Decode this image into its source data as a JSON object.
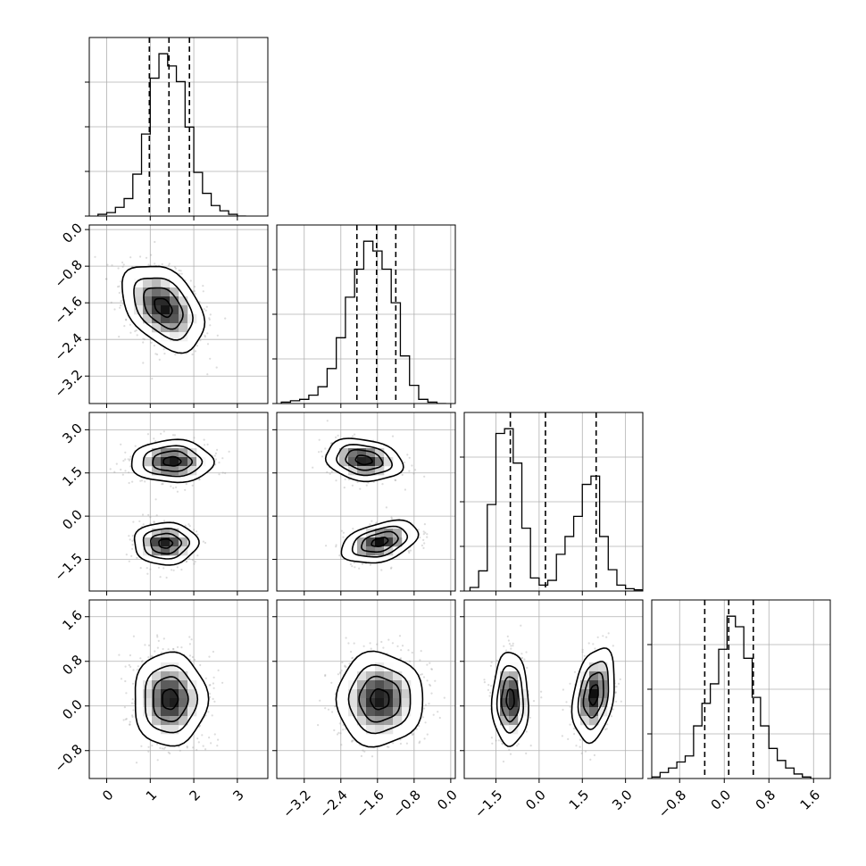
{
  "chart_data": {
    "type": "corner",
    "title": "",
    "dimensions": 4,
    "grid": true,
    "quantile_lines": "dashed",
    "params": [
      {
        "range": [
          -0.4,
          3.7
        ],
        "ticks": [
          0,
          1,
          2,
          3
        ],
        "tick_labels": [
          "0",
          "1",
          "2",
          "3"
        ],
        "quantiles": [
          0.98,
          1.43,
          1.9
        ],
        "hist_bins": [
          -0.2,
          0.0,
          0.2,
          0.4,
          0.6,
          0.8,
          1.0,
          1.2,
          1.4,
          1.6,
          1.8,
          2.0,
          2.2,
          2.4,
          2.6,
          2.8,
          3.0,
          3.2
        ],
        "hist_counts": [
          1,
          2,
          5,
          10,
          24,
          47,
          79,
          93,
          86,
          77,
          51,
          25,
          13,
          6,
          3,
          1,
          0
        ]
      },
      {
        "range": [
          -3.8,
          0.1
        ],
        "ticks": [
          -3.2,
          -2.4,
          -1.6,
          -0.8,
          0.0
        ],
        "tick_labels": [
          "−3.2",
          "−2.4",
          "−1.6",
          "−0.8",
          "0.0"
        ],
        "quantiles": [
          -2.05,
          -1.62,
          -1.2
        ],
        "hist_bins": [
          -3.7,
          -3.5,
          -3.3,
          -3.1,
          -2.9,
          -2.7,
          -2.5,
          -2.3,
          -2.1,
          -1.9,
          -1.7,
          -1.5,
          -1.3,
          -1.1,
          -0.9,
          -0.7,
          -0.5,
          -0.3,
          -0.1
        ],
        "hist_counts": [
          1,
          2,
          3,
          6,
          12,
          25,
          47,
          76,
          96,
          116,
          109,
          96,
          72,
          34,
          13,
          3,
          1,
          0
        ]
      },
      {
        "range": [
          -2.6,
          3.6
        ],
        "ticks": [
          -1.5,
          0.0,
          1.5,
          3.0
        ],
        "tick_labels": [
          "−1.5",
          "0.0",
          "1.5",
          "3.0"
        ],
        "quantiles": [
          -1.0,
          0.22,
          1.98
        ],
        "hist_bins": [
          -2.4,
          -2.1,
          -1.8,
          -1.5,
          -1.2,
          -0.9,
          -0.6,
          -0.3,
          0.0,
          0.3,
          0.6,
          0.9,
          1.2,
          1.5,
          1.8,
          2.1,
          2.4,
          2.7,
          3.0,
          3.3,
          3.6
        ],
        "hist_counts": [
          3,
          17,
          73,
          133,
          137,
          108,
          53,
          11,
          5,
          9,
          31,
          46,
          63,
          90,
          97,
          46,
          18,
          5,
          2,
          1
        ]
      },
      {
        "range": [
          -1.3,
          1.9
        ],
        "ticks": [
          -0.8,
          0.0,
          0.8,
          1.6
        ],
        "tick_labels": [
          "−0.8",
          "0.0",
          "0.8",
          "1.6"
        ],
        "quantiles": [
          -0.35,
          0.08,
          0.52
        ],
        "hist_bins": [
          -1.3,
          -1.15,
          -1.0,
          -0.85,
          -0.7,
          -0.55,
          -0.4,
          -0.25,
          -0.1,
          0.05,
          0.2,
          0.35,
          0.5,
          0.65,
          0.8,
          0.95,
          1.1,
          1.25,
          1.4,
          1.55
        ],
        "hist_counts": [
          1,
          4,
          7,
          11,
          15,
          35,
          50,
          63,
          86,
          108,
          101,
          80,
          54,
          35,
          20,
          12,
          7,
          3,
          1
        ]
      }
    ],
    "pairs": [
      {
        "x": 0,
        "y": 1,
        "modes": [
          {
            "mx": 1.3,
            "my": -1.7,
            "sx": 0.45,
            "sy": 0.45,
            "rho": -0.4
          }
        ]
      },
      {
        "x": 0,
        "y": 2,
        "modes": [
          {
            "mx": 1.5,
            "my": 1.9,
            "sx": 0.45,
            "sy": 0.35,
            "rho": 0.0
          },
          {
            "mx": 1.35,
            "my": -0.95,
            "sx": 0.35,
            "sy": 0.35,
            "rho": 0.0
          }
        ]
      },
      {
        "x": 1,
        "y": 2,
        "modes": [
          {
            "mx": -1.9,
            "my": 1.95,
            "sx": 0.4,
            "sy": 0.35,
            "rho": -0.2
          },
          {
            "mx": -1.55,
            "my": -0.9,
            "sx": 0.4,
            "sy": 0.35,
            "rho": 0.4
          }
        ]
      },
      {
        "x": 0,
        "y": 3,
        "modes": [
          {
            "mx": 1.45,
            "my": 0.12,
            "sx": 0.4,
            "sy": 0.4,
            "rho": 0.0
          }
        ]
      },
      {
        "x": 1,
        "y": 3,
        "modes": [
          {
            "mx": -1.55,
            "my": 0.12,
            "sx": 0.45,
            "sy": 0.4,
            "rho": 0.0
          }
        ]
      },
      {
        "x": 2,
        "y": 3,
        "modes": [
          {
            "mx": -1.0,
            "my": 0.12,
            "sx": 0.3,
            "sy": 0.4,
            "rho": 0.0
          },
          {
            "mx": 1.9,
            "my": 0.2,
            "sx": 0.35,
            "sy": 0.4,
            "rho": 0.3
          }
        ]
      }
    ]
  },
  "colors": {
    "ink": "#000000",
    "grid": "#b0b0b0",
    "points": "#9a9a9a",
    "density_light": "#ffffff",
    "density_dark": "#000000"
  }
}
